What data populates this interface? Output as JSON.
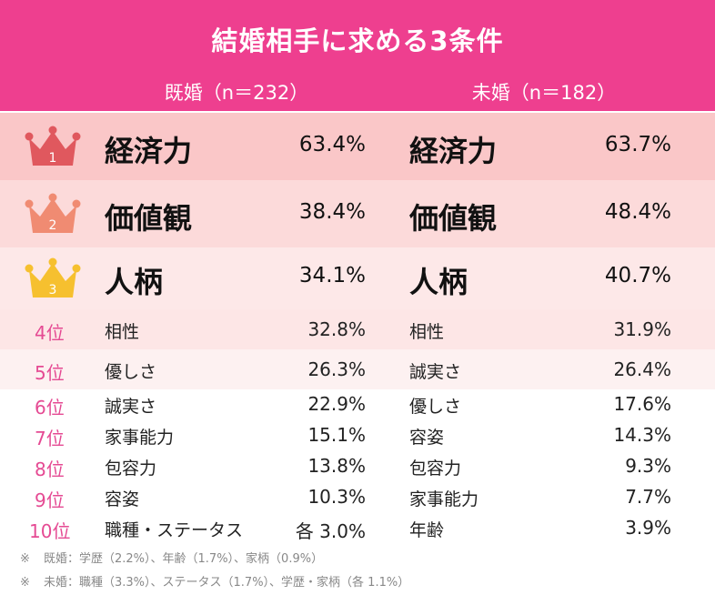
{
  "chart_data": {
    "type": "table",
    "title": "結婚相手に求める3条件",
    "columns": [
      {
        "name": "既婚（n＝232）"
      },
      {
        "name": "未婚（n＝182）"
      }
    ],
    "rows": [
      {
        "rank": "1",
        "married_item": "経済力",
        "married_pct": "63.4%",
        "single_item": "経済力",
        "single_pct": "63.7%"
      },
      {
        "rank": "2",
        "married_item": "価値観",
        "married_pct": "38.4%",
        "single_item": "価値観",
        "single_pct": "48.4%"
      },
      {
        "rank": "3",
        "married_item": "人柄",
        "married_pct": "34.1%",
        "single_item": "人柄",
        "single_pct": "40.7%"
      },
      {
        "rank": "4位",
        "married_item": "相性",
        "married_pct": "32.8%",
        "single_item": "相性",
        "single_pct": "31.9%"
      },
      {
        "rank": "5位",
        "married_item": "優しさ",
        "married_pct": "26.3%",
        "single_item": "誠実さ",
        "single_pct": "26.4%"
      },
      {
        "rank": "6位",
        "married_item": "誠実さ",
        "married_pct": "22.9%",
        "single_item": "優しさ",
        "single_pct": "17.6%"
      },
      {
        "rank": "7位",
        "married_item": "家事能力",
        "married_pct": "15.1%",
        "single_item": "容姿",
        "single_pct": "14.3%"
      },
      {
        "rank": "8位",
        "married_item": "包容力",
        "married_pct": "13.8%",
        "single_item": "包容力",
        "single_pct": "9.3%"
      },
      {
        "rank": "9位",
        "married_item": "容姿",
        "married_pct": "10.3%",
        "single_item": "家事能力",
        "single_pct": "7.7%"
      },
      {
        "rank": "10位",
        "married_item": "職種・ステータス",
        "married_pct": "各 3.0%",
        "single_item": "年齢",
        "single_pct": "3.9%"
      }
    ],
    "notes": [
      {
        "mark": "※",
        "text": "既婚：学歴（2.2%）、年齢（1.7%）、家柄（0.9%）"
      },
      {
        "mark": "※",
        "text": "未婚：職種（3.3%）、ステータス（1.7%）、学歴・家柄（各 1.1%）"
      }
    ]
  },
  "colors": {
    "header": "#ee3f8f",
    "crown_1": "#e0585e",
    "crown_2": "#f08b72",
    "crown_3": "#f6c02f",
    "rank_text": "#e54a93"
  },
  "icons": {
    "rank_1_2_3": "crown-icon"
  }
}
